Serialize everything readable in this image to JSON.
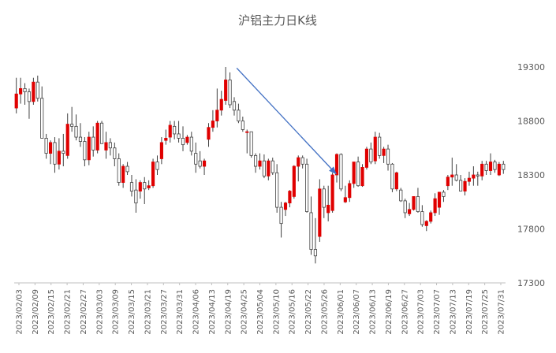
{
  "chart_data": {
    "type": "candlestick",
    "title": "沪铝主力日K线",
    "ylim": [
      17300,
      19300
    ],
    "yticks": [
      17300,
      17800,
      18300,
      18800,
      19300
    ],
    "grid": false,
    "legend": "none",
    "up_color": "#e00000",
    "down_color": "#ffffff",
    "wick_color": "#404040",
    "axis_color": "#bfbfbf",
    "arrow_color": "#4472c4",
    "xtick_labels": [
      "2023/02/03",
      "2023/02/09",
      "2023/02/15",
      "2023/02/21",
      "2023/02/27",
      "2023/03/03",
      "2023/03/09",
      "2023/03/15",
      "2023/03/21",
      "2023/03/27",
      "2023/03/31",
      "2023/04/06",
      "2023/04/13",
      "2023/04/19",
      "2023/04/25",
      "2023/05/04",
      "2023/05/10",
      "2023/05/16",
      "2023/05/22",
      "2023/05/26",
      "2023/06/01",
      "2023/06/07",
      "2023/06/13",
      "2023/06/19",
      "2023/06/27",
      "2023/07/03",
      "2023/07/07",
      "2023/07/13",
      "2023/07/19",
      "2023/07/25",
      "2023/07/31"
    ],
    "candles": [
      {
        "o": 18920,
        "h": 19200,
        "l": 18870,
        "c": 19050
      },
      {
        "o": 19050,
        "h": 19200,
        "l": 18960,
        "c": 19100
      },
      {
        "o": 19100,
        "h": 19150,
        "l": 18950,
        "c": 19070
      },
      {
        "o": 19070,
        "h": 19100,
        "l": 18820,
        "c": 18980
      },
      {
        "o": 18980,
        "h": 19200,
        "l": 18950,
        "c": 19160
      },
      {
        "o": 19160,
        "h": 19220,
        "l": 18980,
        "c": 19010
      },
      {
        "o": 19010,
        "h": 19120,
        "l": 18660,
        "c": 18640
      },
      {
        "o": 18640,
        "h": 18680,
        "l": 18450,
        "c": 18500
      },
      {
        "o": 18500,
        "h": 18620,
        "l": 18400,
        "c": 18600
      },
      {
        "o": 18600,
        "h": 18650,
        "l": 18320,
        "c": 18400
      },
      {
        "o": 18400,
        "h": 18640,
        "l": 18350,
        "c": 18520
      },
      {
        "o": 18520,
        "h": 18680,
        "l": 18380,
        "c": 18500
      },
      {
        "o": 18480,
        "h": 18870,
        "l": 18450,
        "c": 18770
      },
      {
        "o": 18770,
        "h": 18930,
        "l": 18700,
        "c": 18750
      },
      {
        "o": 18750,
        "h": 18860,
        "l": 18620,
        "c": 18650
      },
      {
        "o": 18650,
        "h": 18780,
        "l": 18560,
        "c": 18610
      },
      {
        "o": 18610,
        "h": 18650,
        "l": 18380,
        "c": 18440
      },
      {
        "o": 18440,
        "h": 18700,
        "l": 18390,
        "c": 18650
      },
      {
        "o": 18650,
        "h": 18750,
        "l": 18470,
        "c": 18530
      },
      {
        "o": 18530,
        "h": 18800,
        "l": 18500,
        "c": 18780
      },
      {
        "o": 18780,
        "h": 18800,
        "l": 18600,
        "c": 18590
      },
      {
        "o": 18530,
        "h": 18700,
        "l": 18450,
        "c": 18600
      },
      {
        "o": 18600,
        "h": 18640,
        "l": 18480,
        "c": 18550
      },
      {
        "o": 18550,
        "h": 18600,
        "l": 18380,
        "c": 18450
      },
      {
        "o": 18450,
        "h": 18500,
        "l": 18200,
        "c": 18230
      },
      {
        "o": 18230,
        "h": 18400,
        "l": 18180,
        "c": 18380
      },
      {
        "o": 18380,
        "h": 18420,
        "l": 18300,
        "c": 18330
      },
      {
        "o": 18230,
        "h": 18300,
        "l": 18100,
        "c": 18150
      },
      {
        "o": 18160,
        "h": 18260,
        "l": 17950,
        "c": 18040
      },
      {
        "o": 18150,
        "h": 18250,
        "l": 18080,
        "c": 18230
      },
      {
        "o": 18230,
        "h": 18280,
        "l": 18030,
        "c": 18170
      },
      {
        "o": 18180,
        "h": 18250,
        "l": 18160,
        "c": 18200
      },
      {
        "o": 18200,
        "h": 18450,
        "l": 18180,
        "c": 18420
      },
      {
        "o": 18420,
        "h": 18480,
        "l": 18300,
        "c": 18350
      },
      {
        "o": 18450,
        "h": 18650,
        "l": 18400,
        "c": 18600
      },
      {
        "o": 18620,
        "h": 18720,
        "l": 18580,
        "c": 18640
      },
      {
        "o": 18650,
        "h": 18800,
        "l": 18600,
        "c": 18760
      },
      {
        "o": 18750,
        "h": 18800,
        "l": 18630,
        "c": 18680
      },
      {
        "o": 18680,
        "h": 18800,
        "l": 18600,
        "c": 18640
      },
      {
        "o": 18640,
        "h": 18750,
        "l": 18520,
        "c": 18580
      },
      {
        "o": 18600,
        "h": 18670,
        "l": 18580,
        "c": 18650
      },
      {
        "o": 18650,
        "h": 18700,
        "l": 18480,
        "c": 18520
      },
      {
        "o": 18500,
        "h": 18600,
        "l": 18320,
        "c": 18400
      },
      {
        "o": 18430,
        "h": 18520,
        "l": 18360,
        "c": 18380
      },
      {
        "o": 18380,
        "h": 18450,
        "l": 18300,
        "c": 18430
      },
      {
        "o": 18630,
        "h": 18780,
        "l": 18560,
        "c": 18740
      },
      {
        "o": 18740,
        "h": 18900,
        "l": 18700,
        "c": 18800
      },
      {
        "o": 18800,
        "h": 19100,
        "l": 18740,
        "c": 18900
      },
      {
        "o": 18900,
        "h": 19080,
        "l": 18850,
        "c": 19000
      },
      {
        "o": 18990,
        "h": 19300,
        "l": 18950,
        "c": 19180
      },
      {
        "o": 19180,
        "h": 19250,
        "l": 18920,
        "c": 18950
      },
      {
        "o": 18980,
        "h": 19020,
        "l": 18850,
        "c": 18900
      },
      {
        "o": 18900,
        "h": 18960,
        "l": 18780,
        "c": 18800
      },
      {
        "o": 18800,
        "h": 18840,
        "l": 18700,
        "c": 18720
      },
      {
        "o": 18700,
        "h": 18720,
        "l": 18500,
        "c": 18700
      },
      {
        "o": 18700,
        "h": 18680,
        "l": 18460,
        "c": 18480
      },
      {
        "o": 18480,
        "h": 18500,
        "l": 18320,
        "c": 18380
      },
      {
        "o": 18380,
        "h": 18500,
        "l": 18350,
        "c": 18430
      },
      {
        "o": 18430,
        "h": 18490,
        "l": 18270,
        "c": 18290
      },
      {
        "o": 18290,
        "h": 18450,
        "l": 18250,
        "c": 18430
      },
      {
        "o": 18430,
        "h": 18460,
        "l": 18300,
        "c": 18320
      },
      {
        "o": 18320,
        "h": 18400,
        "l": 17950,
        "c": 18000
      },
      {
        "o": 18000,
        "h": 18050,
        "l": 17720,
        "c": 17850
      },
      {
        "o": 17980,
        "h": 18050,
        "l": 17920,
        "c": 18040
      },
      {
        "o": 18040,
        "h": 18160,
        "l": 18000,
        "c": 18150
      },
      {
        "o": 18100,
        "h": 18390,
        "l": 18080,
        "c": 18380
      },
      {
        "o": 18380,
        "h": 18480,
        "l": 18240,
        "c": 18460
      },
      {
        "o": 18460,
        "h": 18480,
        "l": 18360,
        "c": 18400
      },
      {
        "o": 18400,
        "h": 18450,
        "l": 17950,
        "c": 17960
      },
      {
        "o": 17950,
        "h": 18100,
        "l": 17560,
        "c": 17610
      },
      {
        "o": 17610,
        "h": 17900,
        "l": 17480,
        "c": 17550
      },
      {
        "o": 17730,
        "h": 18260,
        "l": 17680,
        "c": 18170
      },
      {
        "o": 18170,
        "h": 18200,
        "l": 17900,
        "c": 18000
      },
      {
        "o": 17950,
        "h": 18200,
        "l": 17870,
        "c": 18020
      },
      {
        "o": 17970,
        "h": 18320,
        "l": 17950,
        "c": 18300
      },
      {
        "o": 18300,
        "h": 18500,
        "l": 18230,
        "c": 18490
      },
      {
        "o": 18490,
        "h": 18500,
        "l": 18150,
        "c": 18170
      },
      {
        "o": 18050,
        "h": 18200,
        "l": 18040,
        "c": 18090
      },
      {
        "o": 18090,
        "h": 18250,
        "l": 18050,
        "c": 18220
      },
      {
        "o": 18220,
        "h": 18420,
        "l": 18180,
        "c": 18420
      },
      {
        "o": 18420,
        "h": 18470,
        "l": 18190,
        "c": 18200
      },
      {
        "o": 18200,
        "h": 18400,
        "l": 18190,
        "c": 18370
      },
      {
        "o": 18370,
        "h": 18560,
        "l": 18350,
        "c": 18540
      },
      {
        "o": 18540,
        "h": 18600,
        "l": 18400,
        "c": 18420
      },
      {
        "o": 18430,
        "h": 18700,
        "l": 18400,
        "c": 18650
      },
      {
        "o": 18650,
        "h": 18690,
        "l": 18450,
        "c": 18480
      },
      {
        "o": 18480,
        "h": 18560,
        "l": 18410,
        "c": 18540
      },
      {
        "o": 18540,
        "h": 18580,
        "l": 18340,
        "c": 18400
      },
      {
        "o": 18400,
        "h": 18410,
        "l": 18140,
        "c": 18170
      },
      {
        "o": 18170,
        "h": 18330,
        "l": 18150,
        "c": 18320
      },
      {
        "o": 18160,
        "h": 18180,
        "l": 18050,
        "c": 18060
      },
      {
        "o": 18060,
        "h": 18080,
        "l": 17900,
        "c": 17950
      },
      {
        "o": 17940,
        "h": 18040,
        "l": 17920,
        "c": 17980
      },
      {
        "o": 17980,
        "h": 18100,
        "l": 17970,
        "c": 18100
      },
      {
        "o": 18100,
        "h": 18180,
        "l": 17950,
        "c": 17960
      },
      {
        "o": 17960,
        "h": 18020,
        "l": 17820,
        "c": 17840
      },
      {
        "o": 17830,
        "h": 17880,
        "l": 17780,
        "c": 17870
      },
      {
        "o": 17870,
        "h": 17970,
        "l": 17850,
        "c": 17950
      },
      {
        "o": 17950,
        "h": 18130,
        "l": 17920,
        "c": 18080
      },
      {
        "o": 18000,
        "h": 18140,
        "l": 17930,
        "c": 18140
      },
      {
        "o": 18140,
        "h": 18160,
        "l": 18050,
        "c": 18100
      },
      {
        "o": 18200,
        "h": 18300,
        "l": 18160,
        "c": 18280
      },
      {
        "o": 18280,
        "h": 18460,
        "l": 18200,
        "c": 18300
      },
      {
        "o": 18300,
        "h": 18400,
        "l": 18240,
        "c": 18250
      },
      {
        "o": 18250,
        "h": 18300,
        "l": 18150,
        "c": 18150
      },
      {
        "o": 18150,
        "h": 18270,
        "l": 18110,
        "c": 18240
      },
      {
        "o": 18240,
        "h": 18330,
        "l": 18200,
        "c": 18270
      },
      {
        "o": 18270,
        "h": 18380,
        "l": 18200,
        "c": 18300
      },
      {
        "o": 18300,
        "h": 18330,
        "l": 18200,
        "c": 18290
      },
      {
        "o": 18290,
        "h": 18430,
        "l": 18250,
        "c": 18400
      },
      {
        "o": 18400,
        "h": 18430,
        "l": 18300,
        "c": 18340
      },
      {
        "o": 18340,
        "h": 18500,
        "l": 18300,
        "c": 18420
      },
      {
        "o": 18420,
        "h": 18440,
        "l": 18320,
        "c": 18350
      },
      {
        "o": 18300,
        "h": 18420,
        "l": 18290,
        "c": 18400
      },
      {
        "o": 18400,
        "h": 18430,
        "l": 18310,
        "c": 18350
      }
    ],
    "annotation_arrow": {
      "from": {
        "index": 49,
        "value": 19290
      },
      "to": {
        "index": 73,
        "value": 18310
      }
    }
  }
}
